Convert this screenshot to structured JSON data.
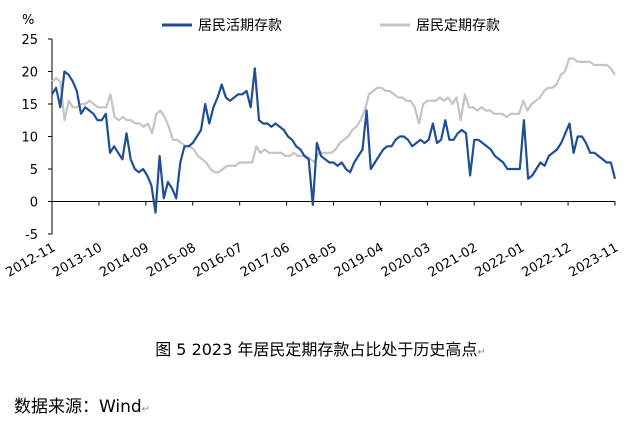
{
  "chart_data": {
    "type": "line",
    "unit_label": "%",
    "ylim": [
      -5,
      25
    ],
    "y_ticks": [
      -5,
      0,
      5,
      10,
      15,
      20,
      25
    ],
    "x_tick_labels": [
      "2012-11",
      "2013-10",
      "2014-09",
      "2015-08",
      "2016-07",
      "2017-06",
      "2018-05",
      "2019-04",
      "2020-03",
      "2021-02",
      "2022-01",
      "2022-12",
      "2023-11"
    ],
    "legend_placement": "top",
    "grid": false,
    "series": [
      {
        "name": "居民活期存款",
        "color": "#1f4e96",
        "values": [
          16.5,
          17.5,
          14.5,
          20,
          19.5,
          18.5,
          17,
          13.5,
          14.5,
          14,
          13.5,
          12.5,
          12.5,
          13.5,
          7.5,
          8.5,
          7.5,
          6.5,
          10.5,
          6.5,
          5,
          4.5,
          5,
          4,
          2.5,
          -1.7,
          7,
          0.5,
          3,
          2,
          0.5,
          6,
          8.5,
          8.5,
          9,
          10,
          11,
          15,
          12,
          14.5,
          16,
          18,
          16,
          15.5,
          16,
          16.5,
          16.5,
          17,
          14.5,
          20.5,
          12.5,
          12,
          12,
          11.5,
          12,
          11.5,
          11,
          10,
          9.5,
          8.5,
          8,
          7,
          6.5,
          -0.5,
          9,
          7,
          6.5,
          6,
          6,
          5.5,
          6,
          5,
          4.5,
          6,
          7,
          8,
          14,
          5,
          6,
          7,
          8,
          8.5,
          8.5,
          9.5,
          10,
          10,
          9.5,
          8.5,
          9,
          9.5,
          9,
          9.5,
          12,
          9,
          9.5,
          12.5,
          9.5,
          9.5,
          10.5,
          11,
          10.5,
          4,
          9.5,
          9.5,
          9,
          8.5,
          8,
          7,
          6.5,
          6,
          5,
          5,
          5,
          5,
          12.5,
          3.5,
          4,
          5,
          6,
          5.5,
          7,
          7.5,
          8,
          9,
          10.5,
          12,
          7.5,
          10,
          10,
          9,
          7.5,
          7.5,
          7,
          6.5,
          6,
          6,
          3.5
        ]
      },
      {
        "name": "居民定期存款",
        "color": "#c4c4c4",
        "values": [
          18.5,
          19,
          18.5,
          12.5,
          15.5,
          14.5,
          14.5,
          15,
          15,
          15.5,
          15,
          14.5,
          14.5,
          14.5,
          16.5,
          13,
          12.5,
          13,
          12.5,
          12.5,
          12,
          12,
          11.5,
          12,
          10.5,
          13.5,
          14,
          13,
          11.5,
          9.5,
          9.5,
          9,
          8.5,
          8.5,
          8,
          7,
          6.5,
          6,
          5,
          4.5,
          4.5,
          5,
          5.5,
          5.5,
          5.5,
          6,
          6,
          6,
          6,
          8.5,
          7.5,
          8,
          7.5,
          7.5,
          7.5,
          7.5,
          7,
          7,
          7.5,
          7,
          7,
          7,
          6.5,
          6,
          7.5,
          7.5,
          7.5,
          7.5,
          8,
          9,
          9.5,
          10,
          11,
          11.5,
          12.5,
          14,
          16.5,
          17,
          17.5,
          17.5,
          17,
          17,
          16.5,
          16,
          16,
          15.5,
          15.5,
          14.5,
          12,
          15,
          15.5,
          15.5,
          15.5,
          16,
          15.5,
          16,
          15,
          16,
          12.5,
          16.5,
          14.5,
          14.5,
          14,
          14.5,
          14,
          14,
          13.5,
          13.5,
          13.5,
          13,
          13.5,
          13.5,
          13.5,
          15.5,
          14,
          15,
          15.5,
          16,
          17,
          17.5,
          17.5,
          18,
          19.5,
          20,
          22,
          22,
          21.5,
          21.5,
          21.5,
          21.5,
          21,
          21,
          21,
          21,
          20.5,
          19.5
        ]
      }
    ]
  },
  "caption": "图 5  2023 年居民定期存款占比处于历史高点",
  "caption_mark": "↵",
  "source": "数据来源：Wind",
  "source_mark": "↵"
}
